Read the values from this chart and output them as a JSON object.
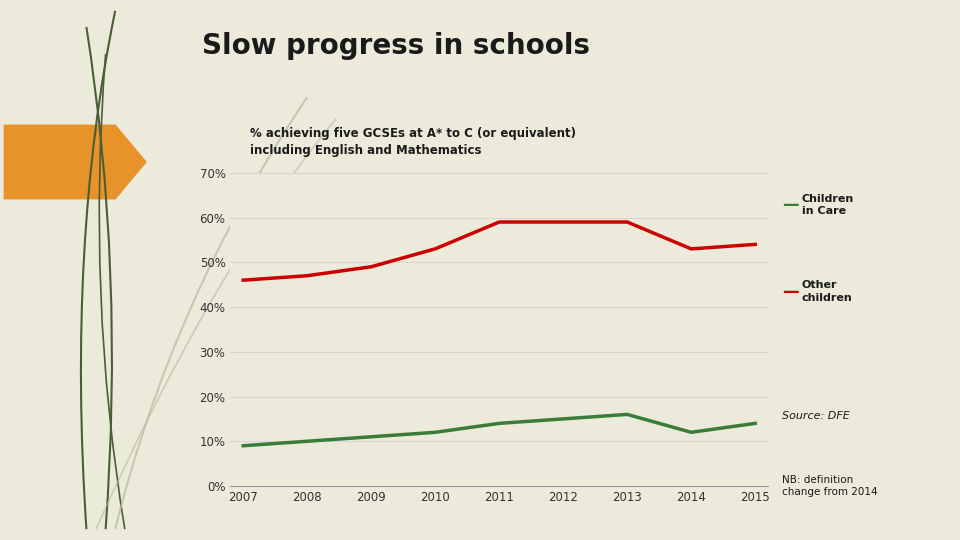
{
  "title": "Slow progress in schools",
  "subtitle": "% achieving five GCSEs at A* to C (or equivalent)\nincluding English and Mathematics",
  "years": [
    2007,
    2008,
    2009,
    2010,
    2011,
    2012,
    2013,
    2014,
    2015
  ],
  "children_in_care": [
    9,
    10,
    11,
    12,
    14,
    15,
    16,
    12,
    14
  ],
  "other_children": [
    46,
    47,
    49,
    53,
    59,
    59,
    59,
    53,
    54
  ],
  "care_color": "#3a7d3a",
  "other_color": "#CC0000",
  "bg_color": "#ECEADB",
  "sidebar_color": "#5a6b45",
  "title_color": "#1a1a1a",
  "ylim": [
    0,
    70
  ],
  "yticks": [
    0,
    10,
    20,
    30,
    40,
    50,
    60,
    70
  ],
  "source_text": "Source: DFE",
  "nb_text": "NB: definition\nchange from 2014",
  "arrow_color": "#E8922A",
  "legend_care": "Children\nin Care",
  "legend_other": "Other\nchildren",
  "text_font": "Impact"
}
